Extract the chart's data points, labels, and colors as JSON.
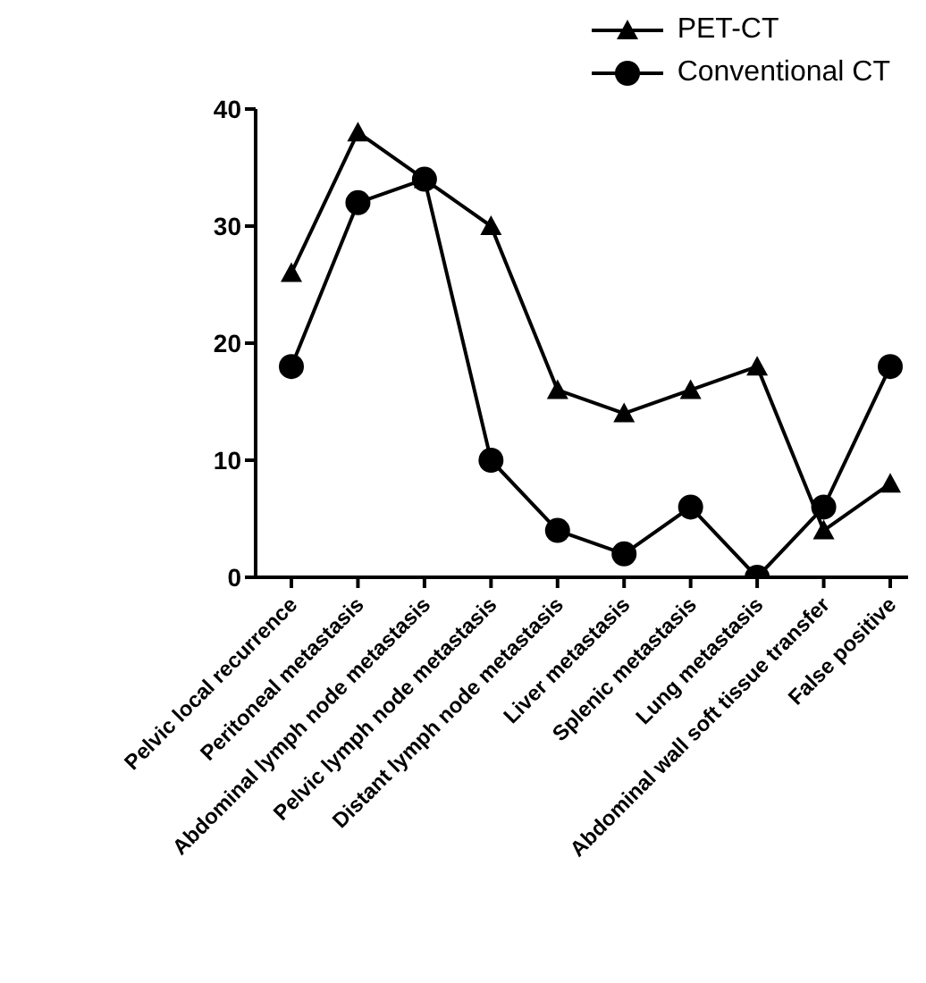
{
  "chart_data": {
    "type": "line",
    "categories": [
      "Pelvic local recurrence",
      "Peritoneal metastasis",
      "Abdominal lymph node metastasis",
      "Pelvic lymph node metastasis",
      "Distant lymph node metastasis",
      "Liver metastasis",
      "Splenic metastasis",
      "Lung metastasis",
      "Abdominal wall soft tissue transfer",
      "False positive"
    ],
    "series": [
      {
        "name": "PET-CT",
        "color": "#000000",
        "marker": "triangle",
        "values": [
          26,
          38,
          34,
          30,
          16,
          14,
          16,
          18,
          4,
          8
        ]
      },
      {
        "name": "Conventional CT",
        "color": "#000000",
        "marker": "circle",
        "values": [
          18,
          32,
          34,
          10,
          4,
          2,
          6,
          0,
          6,
          18
        ]
      }
    ],
    "ylim": [
      0,
      40
    ],
    "yticks": [
      0,
      10,
      20,
      30,
      40
    ],
    "legend": "top right",
    "line_style": "solid"
  }
}
